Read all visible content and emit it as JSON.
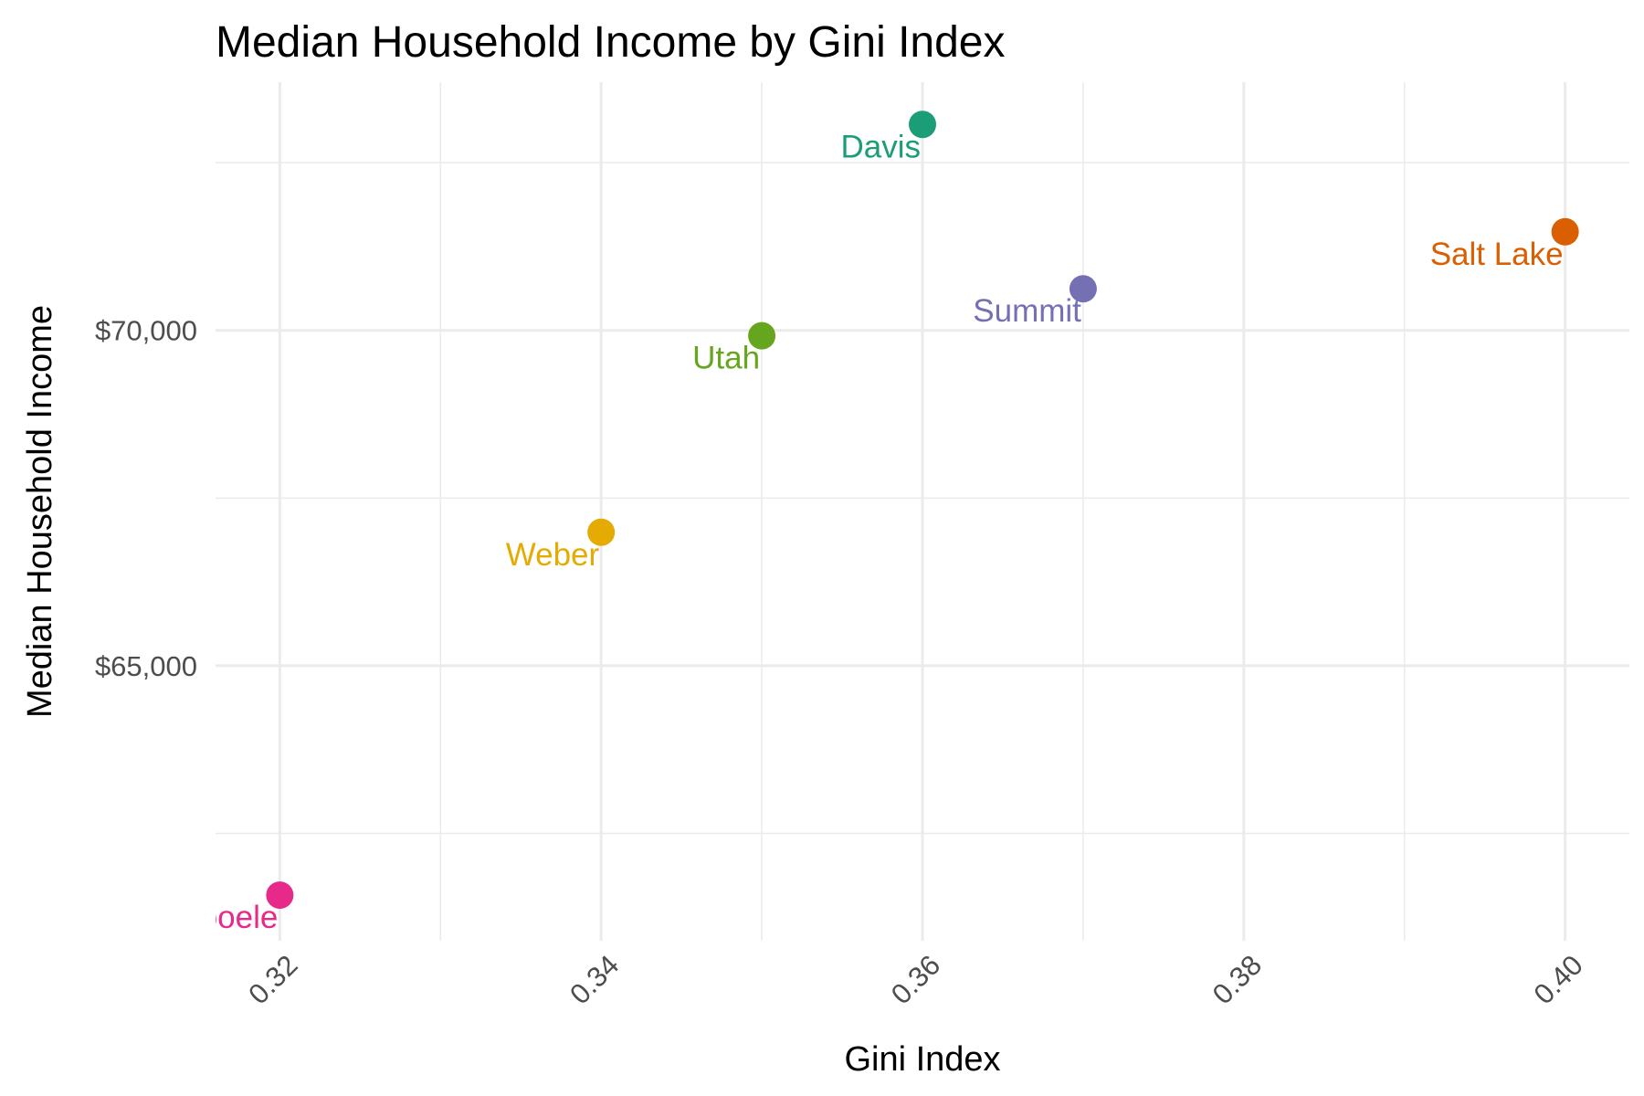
{
  "chart_data": {
    "type": "scatter",
    "title": "Median Household Income by Gini Index",
    "xlabel": "Gini Index",
    "ylabel": "Median Household Income",
    "xlim": [
      0.316,
      0.404
    ],
    "ylim": [
      60900,
      73700
    ],
    "x_ticks": [
      0.32,
      0.34,
      0.36,
      0.38,
      0.4
    ],
    "x_tick_labels": [
      "0.32",
      "0.34",
      "0.36",
      "0.38",
      "0.40"
    ],
    "x_minor_ticks": [
      0.33,
      0.35,
      0.37,
      0.39
    ],
    "y_ticks": [
      65000,
      70000
    ],
    "y_tick_labels": [
      "$65,000",
      "$70,000"
    ],
    "y_minor_ticks": [
      62500,
      67500,
      72500
    ],
    "grid": true,
    "legend": "none",
    "points": [
      {
        "label": "Davis",
        "x": 0.36,
        "y": 73070,
        "color": "#1b9e77"
      },
      {
        "label": "Salt Lake",
        "x": 0.4,
        "y": 71470,
        "color": "#d95f02"
      },
      {
        "label": "Summit",
        "x": 0.37,
        "y": 70620,
        "color": "#7570b3"
      },
      {
        "label": "Utah",
        "x": 0.35,
        "y": 69920,
        "color": "#66a61e"
      },
      {
        "label": "Weber",
        "x": 0.34,
        "y": 66990,
        "color": "#e6ab02"
      },
      {
        "label": "Tooele",
        "x": 0.32,
        "y": 61580,
        "color": "#e7298a"
      }
    ]
  }
}
